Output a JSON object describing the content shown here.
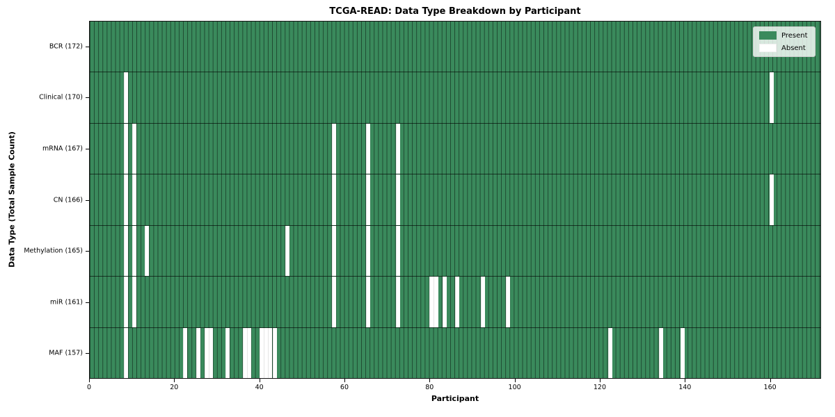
{
  "title": "TCGA-READ: Data Type Breakdown by Participant",
  "xlabel": "Participant",
  "ylabel": "Data Type (Total Sample Count)",
  "legend": {
    "present_label": "Present",
    "absent_label": "Absent"
  },
  "colors": {
    "present": "#3a8a5c",
    "absent": "#ffffff",
    "grid_line": "rgba(0,0,0,0.48)",
    "row_divider": "rgba(0,0,0,0.62)"
  },
  "chart_data": {
    "type": "heatmap",
    "x_axis": {
      "label": "Participant",
      "min": 0,
      "max": 172,
      "ticks": [
        0,
        20,
        40,
        60,
        80,
        100,
        120,
        140,
        160
      ]
    },
    "n_participants": 172,
    "cell_states": [
      "Present",
      "Absent"
    ],
    "rows": [
      {
        "name": "BCR",
        "label": "BCR (172)",
        "total": 172,
        "absent_participants": []
      },
      {
        "name": "Clinical",
        "label": "Clinical (170)",
        "total": 170,
        "absent_participants": [
          8,
          160
        ]
      },
      {
        "name": "mRNA",
        "label": "mRNA (167)",
        "total": 167,
        "absent_participants": [
          8,
          10,
          57,
          65,
          72
        ]
      },
      {
        "name": "CN",
        "label": "CN (166)",
        "total": 166,
        "absent_participants": [
          8,
          10,
          57,
          65,
          72,
          160
        ]
      },
      {
        "name": "Methylation",
        "label": "Methylation (165)",
        "total": 165,
        "absent_participants": [
          8,
          10,
          13,
          46,
          57,
          65,
          72
        ]
      },
      {
        "name": "miR",
        "label": "miR (161)",
        "total": 161,
        "absent_participants": [
          8,
          10,
          57,
          65,
          72,
          80,
          81,
          83,
          86,
          92,
          98
        ]
      },
      {
        "name": "MAF",
        "label": "MAF (157)",
        "total": 157,
        "absent_participants": [
          8,
          22,
          25,
          27,
          28,
          32,
          36,
          37,
          40,
          41,
          42,
          43,
          122,
          134,
          139
        ]
      }
    ]
  }
}
